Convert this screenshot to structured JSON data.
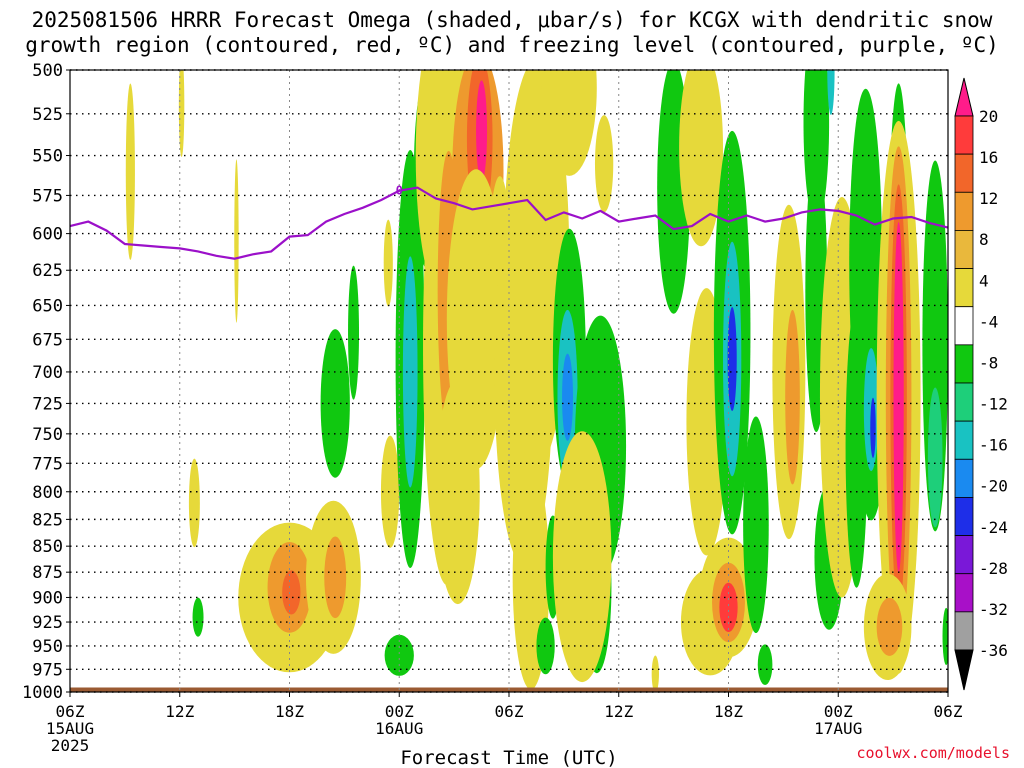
{
  "title_line1": "2025081506 HRRR Forecast Omega (shaded, μbar/s) for KCGX with dendritic snow",
  "title_line2": "growth region (contoured, red, ºC) and freezing level (contoured, purple, ºC)",
  "credit": "coolwx.com/models",
  "chart_data": {
    "type": "heatmap",
    "title": "2025081506 HRRR Forecast Omega (shaded, μbar/s) for KCGX with dendritic snow growth region (contoured, red, ºC) and freezing level (contoured, purple, ºC)",
    "xlabel": "Forecast Time (UTC)",
    "ylabel": "",
    "x_range_hours": [
      0,
      48
    ],
    "y_range_mb": [
      1000,
      500
    ],
    "y_ticks": [
      "500",
      "525",
      "550",
      "575",
      "600",
      "625",
      "650",
      "675",
      "700",
      "725",
      "750",
      "775",
      "800",
      "825",
      "850",
      "875",
      "900",
      "925",
      "950",
      "975",
      "1000"
    ],
    "x_ticks": [
      {
        "hour": 0,
        "label": "06Z",
        "sub": "15AUG",
        "sub2": "2025"
      },
      {
        "hour": 6,
        "label": "12Z",
        "sub": "",
        "sub2": ""
      },
      {
        "hour": 12,
        "label": "18Z",
        "sub": "",
        "sub2": ""
      },
      {
        "hour": 18,
        "label": "00Z",
        "sub": "16AUG",
        "sub2": ""
      },
      {
        "hour": 24,
        "label": "06Z",
        "sub": "",
        "sub2": ""
      },
      {
        "hour": 30,
        "label": "12Z",
        "sub": "",
        "sub2": ""
      },
      {
        "hour": 36,
        "label": "18Z",
        "sub": "",
        "sub2": ""
      },
      {
        "hour": 42,
        "label": "00Z",
        "sub": "17AUG",
        "sub2": ""
      },
      {
        "hour": 48,
        "label": "06Z",
        "sub": "",
        "sub2": ""
      }
    ],
    "grid": true,
    "colorbar": {
      "labels": [
        "20",
        "16",
        "12",
        "8",
        "4",
        "-4",
        "-8",
        "-12",
        "-16",
        "-20",
        "-24",
        "-28",
        "-32",
        "-36"
      ],
      "colors": [
        "#ff1c8a",
        "#ff3b3b",
        "#f2662a",
        "#ee9a2e",
        "#e9b83c",
        "#e6d93a",
        "#ffffff",
        "#10c810",
        "#1ecf7a",
        "#19c2c2",
        "#1a8af0",
        "#1e2ee8",
        "#7a18d8",
        "#a810c8",
        "#a0a0a0",
        "#000000"
      ]
    },
    "freezing_level": {
      "label": "0",
      "hours": [
        0,
        1,
        2,
        3,
        4,
        5,
        6,
        7,
        8,
        9,
        10,
        11,
        12,
        13,
        14,
        15,
        16,
        17,
        18,
        19,
        20,
        21,
        22,
        23,
        24,
        25,
        26,
        27,
        28,
        29,
        30,
        31,
        32,
        33,
        34,
        35,
        36,
        37,
        38,
        39,
        40,
        41,
        42,
        43,
        44,
        45,
        46,
        47,
        48
      ],
      "mb": [
        595,
        592,
        598,
        607,
        608,
        609,
        610,
        612,
        615,
        617,
        614,
        612,
        602,
        601,
        592,
        587,
        583,
        578,
        572,
        570,
        577,
        580,
        584,
        582,
        580,
        578,
        591,
        586,
        590,
        585,
        592,
        590,
        588,
        597,
        595,
        587,
        592,
        588,
        592,
        590,
        586,
        584,
        585,
        588,
        594,
        590,
        589,
        593,
        596
      ]
    },
    "cells": [
      {
        "t": 3.3,
        "p": 560,
        "rt": 0.25,
        "rp": 55,
        "v": 6
      },
      {
        "t": 6.1,
        "p": 520,
        "rt": 0.15,
        "rp": 30,
        "v": 5
      },
      {
        "t": 9.1,
        "p": 605,
        "rt": 0.12,
        "rp": 55,
        "v": 5
      },
      {
        "t": 6.8,
        "p": 810,
        "rt": 0.3,
        "rp": 40,
        "v": 5
      },
      {
        "t": 12.0,
        "p": 900,
        "rt": 2.8,
        "rp": 75,
        "v": 6
      },
      {
        "t": 12.0,
        "p": 890,
        "rt": 1.2,
        "rp": 45,
        "v": 10
      },
      {
        "t": 12.1,
        "p": 895,
        "rt": 0.5,
        "rp": 22,
        "v": 14
      },
      {
        "t": 14.4,
        "p": 880,
        "rt": 1.5,
        "rp": 75,
        "v": 6
      },
      {
        "t": 14.5,
        "p": 880,
        "rt": 0.6,
        "rp": 40,
        "v": 10
      },
      {
        "t": 7.0,
        "p": 920,
        "rt": 0.3,
        "rp": 20,
        "v": -6
      },
      {
        "t": 14.5,
        "p": 725,
        "rt": 0.8,
        "rp": 60,
        "v": -6
      },
      {
        "t": 15.5,
        "p": 670,
        "rt": 0.3,
        "rp": 50,
        "v": -6
      },
      {
        "t": 17.5,
        "p": 800,
        "rt": 0.5,
        "rp": 50,
        "v": 6
      },
      {
        "t": 17.4,
        "p": 620,
        "rt": 0.25,
        "rp": 30,
        "v": 5
      },
      {
        "t": 18.6,
        "p": 690,
        "rt": 0.8,
        "rp": 160,
        "v": -7
      },
      {
        "t": 18.6,
        "p": 700,
        "rt": 0.4,
        "rp": 90,
        "v": -14
      },
      {
        "t": 18.0,
        "p": 960,
        "rt": 0.8,
        "rp": 22,
        "v": -7
      },
      {
        "t": 19.5,
        "p": 560,
        "rt": 0.7,
        "rp": 60,
        "v": -6
      },
      {
        "t": 20.5,
        "p": 550,
        "rt": 1.6,
        "rp": 90,
        "v": 6
      },
      {
        "t": 20.6,
        "p": 680,
        "rt": 1.3,
        "rp": 180,
        "v": 7
      },
      {
        "t": 20.7,
        "p": 640,
        "rt": 0.6,
        "rp": 100,
        "v": 10
      },
      {
        "t": 21.2,
        "p": 800,
        "rt": 1.2,
        "rp": 100,
        "v": 5
      },
      {
        "t": 22.3,
        "p": 560,
        "rt": 1.4,
        "rp": 75,
        "v": 8
      },
      {
        "t": 22.4,
        "p": 540,
        "rt": 0.7,
        "rp": 50,
        "v": 13
      },
      {
        "t": 22.5,
        "p": 535,
        "rt": 0.3,
        "rp": 30,
        "v": 18
      },
      {
        "t": 22.2,
        "p": 660,
        "rt": 1.6,
        "rp": 110,
        "v": 5
      },
      {
        "t": 23.5,
        "p": 620,
        "rt": 0.6,
        "rp": 60,
        "v": 6
      },
      {
        "t": 24.8,
        "p": 700,
        "rt": 1.6,
        "rp": 150,
        "v": 5
      },
      {
        "t": 25.5,
        "p": 620,
        "rt": 1.8,
        "rp": 140,
        "v": 6
      },
      {
        "t": 25.2,
        "p": 880,
        "rt": 1.0,
        "rp": 110,
        "v": 5
      },
      {
        "t": 26.0,
        "p": 950,
        "rt": 0.5,
        "rp": 30,
        "v": -6
      },
      {
        "t": 27.3,
        "p": 510,
        "rt": 1.5,
        "rp": 50,
        "v": 5
      },
      {
        "t": 26.4,
        "p": 870,
        "rt": 0.4,
        "rp": 50,
        "v": -6
      },
      {
        "t": 27.7,
        "p": 860,
        "rt": 0.5,
        "rp": 30,
        "v": -7
      },
      {
        "t": 27.3,
        "p": 690,
        "rt": 0.9,
        "rp": 100,
        "v": -7
      },
      {
        "t": 27.2,
        "p": 720,
        "rt": 0.55,
        "rp": 70,
        "v": -12
      },
      {
        "t": 27.2,
        "p": 720,
        "rt": 0.3,
        "rp": 35,
        "v": -18
      },
      {
        "t": 29.0,
        "p": 760,
        "rt": 1.4,
        "rp": 110,
        "v": -6
      },
      {
        "t": 28.8,
        "p": 890,
        "rt": 0.8,
        "rp": 85,
        "v": -7
      },
      {
        "t": 28.8,
        "p": 890,
        "rt": 0.45,
        "rp": 50,
        "v": -12
      },
      {
        "t": 28.0,
        "p": 860,
        "rt": 1.6,
        "rp": 120,
        "v": 5
      },
      {
        "t": 29.2,
        "p": 555,
        "rt": 0.5,
        "rp": 30,
        "v": 5
      },
      {
        "t": 33.0,
        "p": 570,
        "rt": 0.9,
        "rp": 80,
        "v": -7
      },
      {
        "t": 34.5,
        "p": 545,
        "rt": 1.2,
        "rp": 60,
        "v": 5
      },
      {
        "t": 32.0,
        "p": 980,
        "rt": 0.2,
        "rp": 20,
        "v": 5
      },
      {
        "t": 34.8,
        "p": 740,
        "rt": 1.1,
        "rp": 110,
        "v": 5
      },
      {
        "t": 35.0,
        "p": 925,
        "rt": 1.6,
        "rp": 55,
        "v": 5
      },
      {
        "t": 36.2,
        "p": 670,
        "rt": 1.0,
        "rp": 150,
        "v": -6
      },
      {
        "t": 36.2,
        "p": 690,
        "rt": 0.5,
        "rp": 90,
        "v": -12
      },
      {
        "t": 36.2,
        "p": 690,
        "rt": 0.25,
        "rp": 40,
        "v": -20
      },
      {
        "t": 36.0,
        "p": 900,
        "rt": 1.6,
        "rp": 60,
        "v": 7
      },
      {
        "t": 36.0,
        "p": 905,
        "rt": 0.9,
        "rp": 40,
        "v": 11
      },
      {
        "t": 36.0,
        "p": 910,
        "rt": 0.5,
        "rp": 25,
        "v": 16
      },
      {
        "t": 37.5,
        "p": 830,
        "rt": 0.7,
        "rp": 100,
        "v": -6
      },
      {
        "t": 38.0,
        "p": 970,
        "rt": 0.4,
        "rp": 22,
        "v": -7
      },
      {
        "t": 39.3,
        "p": 700,
        "rt": 0.9,
        "rp": 130,
        "v": 6
      },
      {
        "t": 39.5,
        "p": 720,
        "rt": 0.4,
        "rp": 70,
        "v": 10
      },
      {
        "t": 40.8,
        "p": 640,
        "rt": 0.6,
        "rp": 100,
        "v": -6
      },
      {
        "t": 40.8,
        "p": 530,
        "rt": 0.7,
        "rp": 60,
        "v": -7
      },
      {
        "t": 41.5,
        "p": 860,
        "rt": 0.8,
        "rp": 70,
        "v": -6
      },
      {
        "t": 41.6,
        "p": 500,
        "rt": 0.2,
        "rp": 25,
        "v": -14
      },
      {
        "t": 42.2,
        "p": 720,
        "rt": 1.2,
        "rp": 160,
        "v": 5
      },
      {
        "t": 43.0,
        "p": 760,
        "rt": 0.6,
        "rp": 120,
        "v": -6
      },
      {
        "t": 43.5,
        "p": 620,
        "rt": 0.9,
        "rp": 120,
        "v": -6
      },
      {
        "t": 43.8,
        "p": 730,
        "rt": 0.8,
        "rp": 90,
        "v": -7
      },
      {
        "t": 43.8,
        "p": 730,
        "rt": 0.4,
        "rp": 50,
        "v": -14
      },
      {
        "t": 43.9,
        "p": 745,
        "rt": 0.15,
        "rp": 25,
        "v": -20
      },
      {
        "t": 45.3,
        "p": 650,
        "rt": 0.6,
        "rp": 160,
        "v": -6
      },
      {
        "t": 45.3,
        "p": 720,
        "rt": 1.2,
        "rp": 220,
        "v": 6
      },
      {
        "t": 45.3,
        "p": 720,
        "rt": 0.7,
        "rp": 200,
        "v": 10
      },
      {
        "t": 45.3,
        "p": 720,
        "rt": 0.45,
        "rp": 170,
        "v": 15
      },
      {
        "t": 45.3,
        "p": 720,
        "rt": 0.28,
        "rp": 140,
        "v": 22
      },
      {
        "t": 44.7,
        "p": 930,
        "rt": 1.3,
        "rp": 55,
        "v": 5
      },
      {
        "t": 44.8,
        "p": 930,
        "rt": 0.7,
        "rp": 30,
        "v": 9
      },
      {
        "t": 47.3,
        "p": 680,
        "rt": 0.7,
        "rp": 140,
        "v": -6
      },
      {
        "t": 47.3,
        "p": 770,
        "rt": 0.4,
        "rp": 60,
        "v": -10
      },
      {
        "t": 47.9,
        "p": 940,
        "rt": 0.2,
        "rp": 30,
        "v": -7
      }
    ]
  }
}
